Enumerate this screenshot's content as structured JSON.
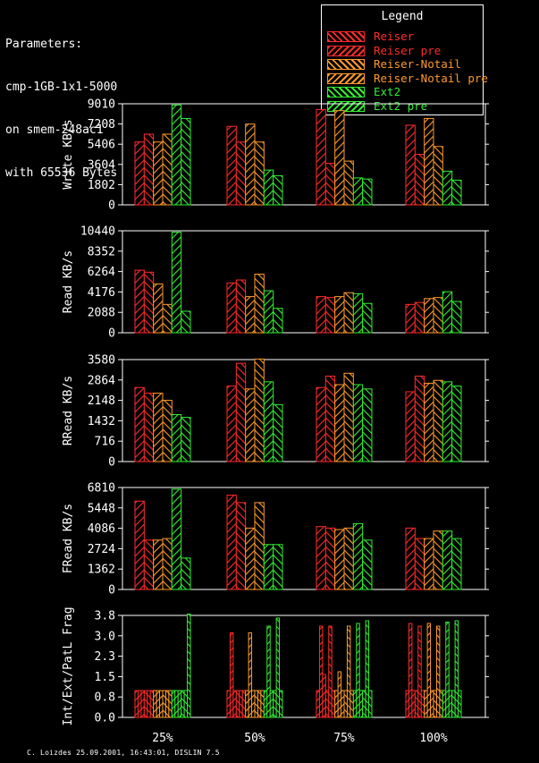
{
  "parameters": [
    "Parameters:",
    "cmp-1GB-1x1-5000",
    "on smem-248ac1",
    "with 65536 Bytes"
  ],
  "legend_title": "Legend",
  "footer": "C. Loizdes 25.09.2001, 16:43:01, DISLIN 7.5",
  "colors": {
    "Reiser": "#ff2b2b",
    "Reiser pre": "#ff2b2b",
    "Reiser-Notail": "#ff9a2b",
    "Reiser-Notail pre": "#ff9a2b",
    "Ext2": "#33ee33",
    "Ext2 pre": "#33ee33"
  },
  "chart_data": [
    {
      "type": "bar",
      "ylabel": "Write KB/s",
      "yticks": [
        "0",
        "1802",
        "3604",
        "5406",
        "7208",
        "9010"
      ],
      "ylim": [
        0,
        9010
      ],
      "categories": [
        "25%",
        "50%",
        "75%",
        "100%"
      ],
      "series": [
        {
          "name": "Reiser",
          "values": [
            5600,
            7000,
            8500,
            7100
          ]
        },
        {
          "name": "Reiser pre",
          "values": [
            6300,
            5600,
            3700,
            4500
          ]
        },
        {
          "name": "Reiser-Notail",
          "values": [
            5600,
            7200,
            8400,
            7700
          ]
        },
        {
          "name": "Reiser-Notail pre",
          "values": [
            6300,
            5600,
            3900,
            5200
          ]
        },
        {
          "name": "Ext2",
          "values": [
            8900,
            3100,
            2400,
            3000
          ]
        },
        {
          "name": "Ext2 pre",
          "values": [
            7700,
            2600,
            2300,
            2200
          ]
        }
      ]
    },
    {
      "type": "bar",
      "ylabel": "Read KB/s",
      "yticks": [
        "0",
        "2088",
        "4176",
        "6264",
        "8352",
        "10440"
      ],
      "ylim": [
        0,
        10440
      ],
      "categories": [
        "25%",
        "50%",
        "75%",
        "100%"
      ],
      "series": [
        {
          "name": "Reiser",
          "values": [
            6400,
            5100,
            3700,
            2900
          ]
        },
        {
          "name": "Reiser pre",
          "values": [
            6200,
            5400,
            3600,
            3100
          ]
        },
        {
          "name": "Reiser-Notail",
          "values": [
            5000,
            3700,
            3700,
            3500
          ]
        },
        {
          "name": "Reiser-Notail pre",
          "values": [
            2900,
            6000,
            4100,
            3600
          ]
        },
        {
          "name": "Ext2",
          "values": [
            10300,
            4300,
            4000,
            4200
          ]
        },
        {
          "name": "Ext2 pre",
          "values": [
            2200,
            2500,
            3000,
            3200
          ]
        }
      ]
    },
    {
      "type": "bar",
      "ylabel": "RRead KB/s",
      "yticks": [
        "0",
        "716",
        "1432",
        "2148",
        "2864",
        "3580"
      ],
      "ylim": [
        0,
        3580
      ],
      "categories": [
        "25%",
        "50%",
        "75%",
        "100%"
      ],
      "series": [
        {
          "name": "Reiser",
          "values": [
            2600,
            2650,
            2600,
            2450
          ]
        },
        {
          "name": "Reiser pre",
          "values": [
            2400,
            3450,
            3000,
            3000
          ]
        },
        {
          "name": "Reiser-Notail",
          "values": [
            2400,
            2550,
            2700,
            2750
          ]
        },
        {
          "name": "Reiser-Notail pre",
          "values": [
            2150,
            3600,
            3100,
            2850
          ]
        },
        {
          "name": "Ext2",
          "values": [
            1650,
            2800,
            2700,
            2800
          ]
        },
        {
          "name": "Ext2 pre",
          "values": [
            1550,
            2000,
            2550,
            2650
          ]
        }
      ]
    },
    {
      "type": "bar",
      "ylabel": "FRead KB/s",
      "yticks": [
        "0",
        "1362",
        "2724",
        "4086",
        "5448",
        "6810"
      ],
      "ylim": [
        0,
        6810
      ],
      "categories": [
        "25%",
        "50%",
        "75%",
        "100%"
      ],
      "series": [
        {
          "name": "Reiser",
          "values": [
            5900,
            6300,
            4200,
            4100
          ]
        },
        {
          "name": "Reiser pre",
          "values": [
            3300,
            5800,
            4100,
            3400
          ]
        },
        {
          "name": "Reiser-Notail",
          "values": [
            3300,
            4100,
            4000,
            3400
          ]
        },
        {
          "name": "Reiser-Notail pre",
          "values": [
            3400,
            5800,
            4100,
            3900
          ]
        },
        {
          "name": "Ext2",
          "values": [
            6700,
            3000,
            4400,
            3900
          ]
        },
        {
          "name": "Ext2 pre",
          "values": [
            2100,
            3000,
            3300,
            3400
          ]
        }
      ]
    },
    {
      "type": "bar",
      "ylabel": "Int/Ext/PatL Frag",
      "yticks": [
        "0.0",
        "0.8",
        "1.5",
        "2.3",
        "3.0",
        "3.8"
      ],
      "ylim": [
        0,
        3.8
      ],
      "categories": [
        "25%",
        "50%",
        "75%",
        "100%"
      ],
      "bars_per_series": 3,
      "series": [
        {
          "name": "Reiser",
          "values": [
            [
              1.0,
              1.0,
              1.0
            ],
            [
              1.0,
              3.15,
              1.0
            ],
            [
              1.0,
              3.4,
              1.6
            ],
            [
              1.0,
              3.5,
              1.0
            ]
          ]
        },
        {
          "name": "Reiser pre",
          "values": [
            [
              1.0,
              1.0,
              1.0
            ],
            [
              1.0,
              1.0,
              1.0
            ],
            [
              1.0,
              3.4,
              1.0
            ],
            [
              1.0,
              3.4,
              1.0
            ]
          ]
        },
        {
          "name": "Reiser-Notail",
          "values": [
            [
              1.0,
              1.0,
              1.0
            ],
            [
              1.0,
              3.15,
              1.0
            ],
            [
              1.0,
              1.7,
              1.0
            ],
            [
              1.0,
              3.5,
              1.0
            ]
          ]
        },
        {
          "name": "Reiser-Notail pre",
          "values": [
            [
              1.0,
              1.0,
              1.0
            ],
            [
              1.0,
              1.0,
              1.0
            ],
            [
              1.0,
              3.4,
              1.0
            ],
            [
              1.0,
              3.4,
              1.0
            ]
          ]
        },
        {
          "name": "Ext2",
          "values": [
            [
              1.0,
              1.0,
              1.0
            ],
            [
              1.0,
              3.4,
              1.0
            ],
            [
              1.0,
              3.5,
              1.0
            ],
            [
              1.0,
              3.55,
              1.0
            ]
          ]
        },
        {
          "name": "Ext2 pre",
          "values": [
            [
              1.0,
              1.0,
              3.85
            ],
            [
              1.0,
              3.7,
              1.0
            ],
            [
              1.0,
              3.6,
              1.0
            ],
            [
              1.0,
              3.6,
              1.0
            ]
          ]
        }
      ]
    }
  ]
}
